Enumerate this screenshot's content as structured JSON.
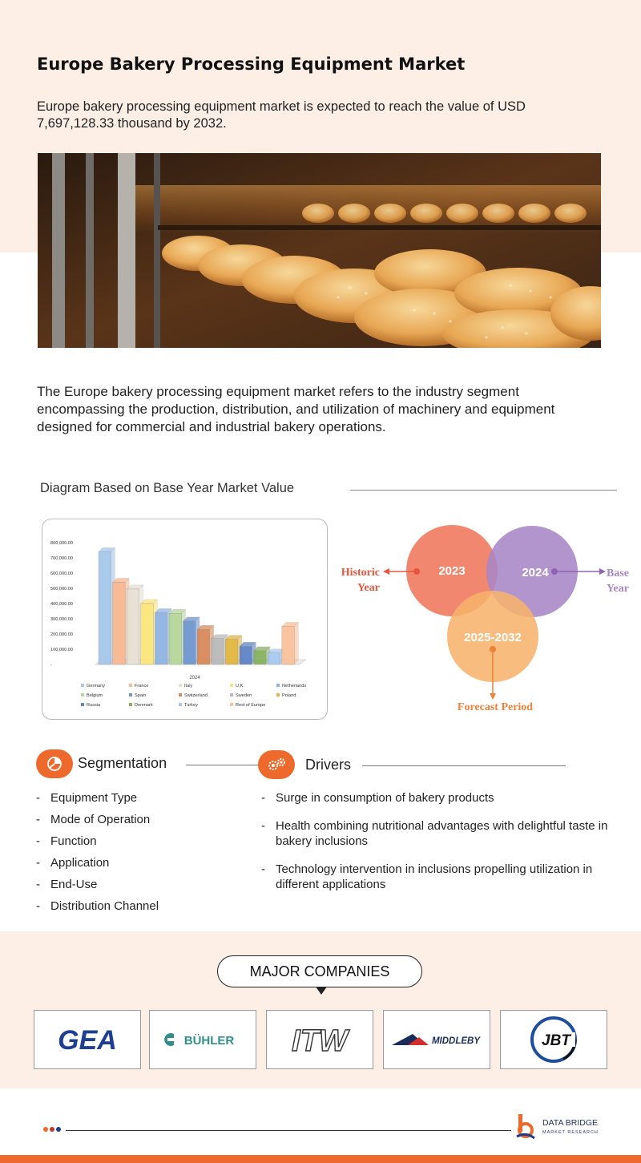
{
  "header": {
    "title": "Europe Bakery Processing Equipment Market",
    "intro": "Europe bakery processing equipment market is expected to reach the value of USD 7,697,128.33 thousand by 2032."
  },
  "description": "The Europe bakery processing equipment market refers to the industry segment encompassing the production, distribution, and utilization of machinery and equipment designed for commercial and industrial bakery operations.",
  "diagram": {
    "heading": "Diagram Based on Base Year Market Value"
  },
  "chart_data": {
    "type": "bar",
    "title": "",
    "xlabel": "2024",
    "ylabel": "",
    "ylim": [
      0,
      800000
    ],
    "yticks": [
      "800,000.00",
      "700,000.00",
      "600,000.00",
      "500,000.00",
      "400,000.00",
      "300,000.00",
      "200,000.00",
      "100,000.00",
      "-"
    ],
    "categories": [
      "2024"
    ],
    "series": [
      {
        "name": "Germany",
        "values": [
          740000
        ],
        "color": "#a6c8ec"
      },
      {
        "name": "France",
        "values": [
          540000
        ],
        "color": "#f8b890"
      },
      {
        "name": "Italy",
        "values": [
          495000
        ],
        "color": "#e8e0d4"
      },
      {
        "name": "U.K.",
        "values": [
          400000
        ],
        "color": "#fbe57a"
      },
      {
        "name": "Netherlands",
        "values": [
          340000
        ],
        "color": "#8fb4e3"
      },
      {
        "name": "Belgium",
        "values": [
          335000
        ],
        "color": "#b5d69a"
      },
      {
        "name": "Spain",
        "values": [
          285000
        ],
        "color": "#6f96cf"
      },
      {
        "name": "Switzerland",
        "values": [
          230000
        ],
        "color": "#d98a5a"
      },
      {
        "name": "Sweden",
        "values": [
          170000
        ],
        "color": "#b9b9b9"
      },
      {
        "name": "Poland",
        "values": [
          165000
        ],
        "color": "#e2b640"
      },
      {
        "name": "Russia",
        "values": [
          120000
        ],
        "color": "#5f83c5"
      },
      {
        "name": "Denmark",
        "values": [
          90000
        ],
        "color": "#86b25e"
      },
      {
        "name": "Turkey",
        "values": [
          75000
        ],
        "color": "#a7c9f0"
      },
      {
        "name": "Rest of Europe",
        "values": [
          250000
        ],
        "color": "#f9c19a"
      }
    ],
    "legend_position": "bottom"
  },
  "venn": {
    "historic": "2023",
    "base": "2024",
    "forecast": "2025-2032",
    "label_historic_1": "Historic",
    "label_historic_2": "Year",
    "label_base_1": "Base",
    "label_base_2": "Year",
    "label_forecast": "Forecast Period",
    "colors": {
      "historic": "#ef7a5e",
      "base": "#a986c6",
      "forecast": "#f6b36c",
      "text_orange": "#f0813a"
    }
  },
  "segmentation": {
    "title": "Segmentation",
    "icon": "pie-chart-icon",
    "items": [
      "Equipment Type",
      "Mode of Operation",
      "Function",
      "Application",
      "End-Use",
      "Distribution Channel"
    ]
  },
  "drivers": {
    "title": "Drivers",
    "icon": "gears-icon",
    "items": [
      "Surge in consumption of bakery products",
      "Health combining nutritional advantages with delightful taste in bakery inclusions",
      "Technology intervention in inclusions propelling utilization in different applications"
    ]
  },
  "companies": {
    "title": "MAJOR COMPANIES",
    "logos": [
      "GEA",
      "BÜHLER",
      "ITW",
      "MIDDLEBY",
      "JBT"
    ]
  },
  "footer": {
    "brand_line1": "DATA BRIDGE",
    "brand_line2": "MARKET RESEARCH",
    "accent": "#ee6a2c",
    "dot_colors": [
      "#ee6a2c",
      "#c0392b",
      "#1f3c88"
    ]
  }
}
